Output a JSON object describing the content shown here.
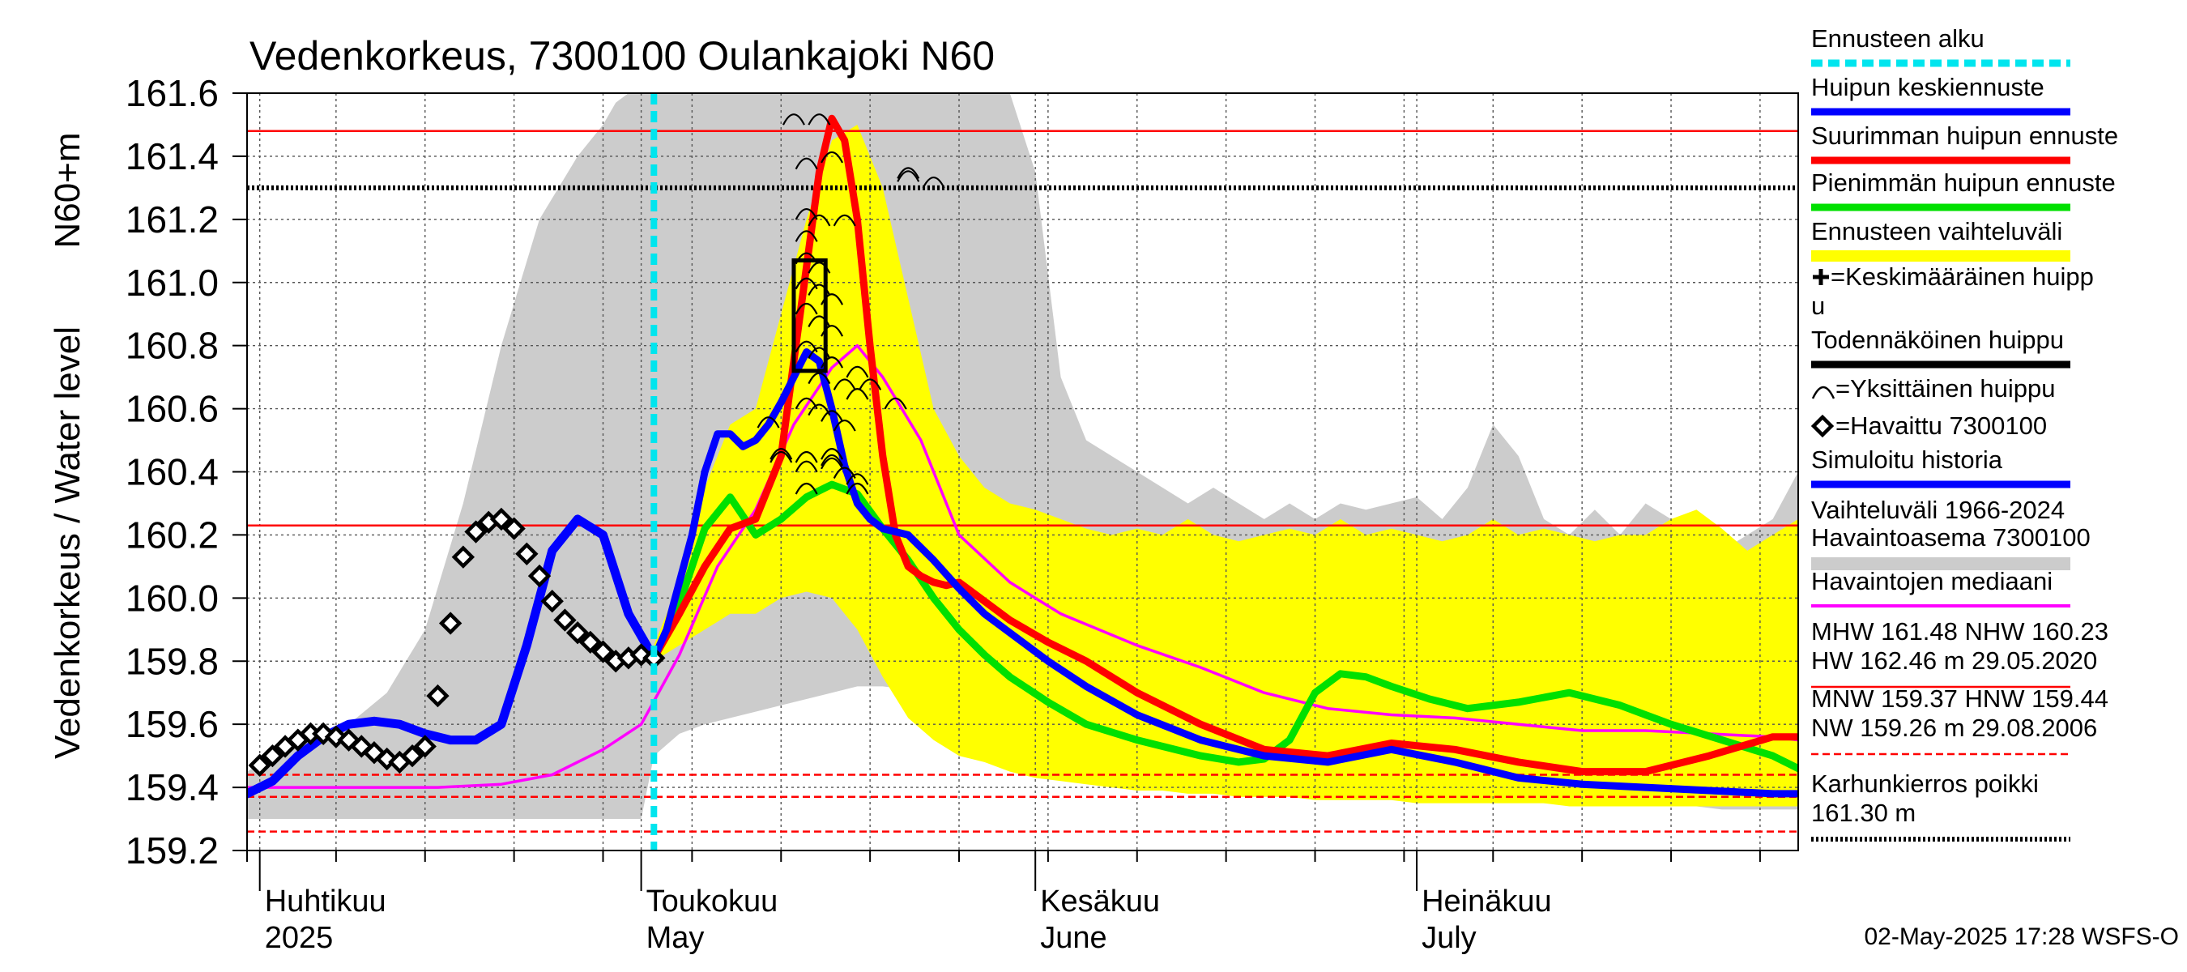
{
  "chart_data": {
    "type": "line",
    "title": "Vedenkorkeus, 7300100 Oulankajoki N60",
    "ylabel": "Vedenkorkeus / Water level",
    "yunit": "N60+m",
    "ylim": [
      159.2,
      161.6
    ],
    "yticks": [
      159.2,
      159.4,
      159.6,
      159.8,
      160.0,
      160.2,
      160.4,
      160.6,
      160.8,
      161.0,
      161.2,
      161.4,
      161.6
    ],
    "xlim": [
      "2025-03-31",
      "2025-07-31"
    ],
    "forecast_start": "2025-05-02",
    "timestamp": "02-May-2025 17:28 WSFS-O",
    "grid": true,
    "legend_position": "right",
    "month_labels": [
      {
        "date": "2025-04-01",
        "fi": "Huhtikuu",
        "en": "2025"
      },
      {
        "date": "2025-05-01",
        "fi": "Toukokuu",
        "en": "May"
      },
      {
        "date": "2025-06-01",
        "fi": "Kesäkuu",
        "en": "June"
      },
      {
        "date": "2025-07-01",
        "fi": "Heinäkuu",
        "en": "July"
      }
    ],
    "hlines": [
      {
        "value": 161.48,
        "color": "#ff0000",
        "style": "solid"
      },
      {
        "value": 160.23,
        "color": "#ff0000",
        "style": "solid"
      },
      {
        "value": 161.3,
        "color": "#000000",
        "style": "dotted"
      },
      {
        "value": 159.44,
        "color": "#ff0000",
        "style": "dashed"
      },
      {
        "value": 159.37,
        "color": "#ff0000",
        "style": "dashed"
      },
      {
        "value": 159.26,
        "color": "#ff0000",
        "style": "dashed"
      }
    ],
    "colors": {
      "forecast_start": "#00e5ee",
      "mean_peak": "#0000ff",
      "max_peak": "#ff0000",
      "min_peak": "#00e000",
      "forecast_range": "#ffff00",
      "simulated": "#0000ff",
      "historic_range": "#cccccc",
      "median": "#ff00ff"
    },
    "legend": [
      {
        "key": "forecast_start",
        "label": "Ennusteen alku"
      },
      {
        "key": "mean_peak",
        "label": "Huipun keskiennuste"
      },
      {
        "key": "max_peak",
        "label": "Suurimman huipun ennuste"
      },
      {
        "key": "min_peak",
        "label": "Pienimmän huipun ennuste"
      },
      {
        "key": "forecast_range",
        "label": "Ennusteen vaihteluväli"
      },
      {
        "key": "avg_peak",
        "label": "=Keskimääräinen huipp",
        "label2": "u"
      },
      {
        "key": "probable_peak",
        "label": "Todennäköinen huippu"
      },
      {
        "key": "single_peak",
        "label": "=Yksittäinen huippu"
      },
      {
        "key": "observed",
        "label": "=Havaittu 7300100"
      },
      {
        "key": "simulated",
        "label": "Simuloitu historia"
      },
      {
        "key": "historic_range",
        "label": "Vaihteluväli 1966-2024",
        "label2": " Havaintoasema 7300100"
      },
      {
        "key": "median",
        "label": "Havaintojen mediaani"
      },
      {
        "key": "mhw",
        "label": "MHW 161.48 NHW 160.23",
        "label2": "HW 162.46 m 29.05.2020"
      },
      {
        "key": "mnw",
        "label": "MNW 159.37 HNW 159.44",
        "label2": "NW 159.26 m 29.08.2006"
      },
      {
        "key": "karhu",
        "label": "Karhunkierros poikki",
        "label2": "161.30 m"
      }
    ],
    "series": [
      {
        "name": "Havaittu 7300100",
        "key": "observed",
        "type": "markers",
        "x": [
          1,
          2,
          3,
          4,
          5,
          6,
          7,
          8,
          9,
          10,
          11,
          12,
          13,
          14,
          15,
          16,
          17,
          18,
          19,
          20,
          21,
          22,
          23,
          24,
          25,
          26,
          27,
          28,
          29,
          30,
          31,
          32
        ],
        "y": [
          159.47,
          159.5,
          159.53,
          159.55,
          159.57,
          159.57,
          159.56,
          159.55,
          159.53,
          159.51,
          159.49,
          159.48,
          159.5,
          159.53,
          159.69,
          159.92,
          160.13,
          160.21,
          160.24,
          160.25,
          160.22,
          160.14,
          160.07,
          159.99,
          159.93,
          159.89,
          159.86,
          159.83,
          159.8,
          159.81,
          159.82,
          159.81
        ]
      },
      {
        "name": "Simuloitu historia",
        "key": "simulated",
        "type": "line",
        "x": [
          0,
          2,
          4,
          6,
          8,
          10,
          12,
          14,
          16,
          18,
          20,
          22,
          24,
          26,
          28,
          30,
          32
        ],
        "y": [
          159.38,
          159.42,
          159.5,
          159.56,
          159.6,
          159.61,
          159.6,
          159.57,
          159.55,
          159.55,
          159.6,
          159.85,
          160.15,
          160.25,
          160.2,
          159.95,
          159.81
        ]
      },
      {
        "name": "Huipun keskiennuste",
        "key": "mean_peak",
        "type": "line",
        "x": [
          32,
          33,
          34,
          35,
          36,
          37,
          38,
          39,
          40,
          41,
          42,
          43,
          44,
          45,
          46,
          47,
          48,
          49,
          50,
          52,
          54,
          56,
          58,
          60,
          63,
          66,
          70,
          75,
          80,
          85,
          90,
          95,
          100,
          105,
          110,
          115,
          120,
          122
        ],
        "y": [
          159.81,
          159.9,
          160.05,
          160.2,
          160.4,
          160.52,
          160.52,
          160.48,
          160.5,
          160.55,
          160.62,
          160.7,
          160.78,
          160.75,
          160.6,
          160.42,
          160.3,
          160.25,
          160.22,
          160.2,
          160.12,
          160.03,
          159.95,
          159.89,
          159.8,
          159.72,
          159.63,
          159.55,
          159.5,
          159.48,
          159.52,
          159.48,
          159.43,
          159.41,
          159.4,
          159.39,
          159.38,
          159.38
        ]
      },
      {
        "name": "Suurimman huipun ennuste",
        "key": "max_peak",
        "type": "line",
        "x": [
          32,
          34,
          36,
          38,
          40,
          42,
          43,
          44,
          45,
          46,
          47,
          48,
          49,
          50,
          51,
          52,
          53,
          54,
          55,
          56,
          58,
          60,
          63,
          66,
          70,
          75,
          80,
          85,
          90,
          95,
          100,
          105,
          110,
          115,
          120,
          122
        ],
        "y": [
          159.81,
          159.95,
          160.1,
          160.22,
          160.25,
          160.45,
          160.75,
          161.05,
          161.35,
          161.52,
          161.45,
          161.2,
          160.8,
          160.45,
          160.2,
          160.1,
          160.07,
          160.05,
          160.04,
          160.05,
          159.99,
          159.93,
          159.86,
          159.8,
          159.7,
          159.6,
          159.52,
          159.5,
          159.54,
          159.52,
          159.48,
          159.45,
          159.45,
          159.5,
          159.56,
          159.56
        ]
      },
      {
        "name": "Pienimmän huipun ennuste",
        "key": "min_peak",
        "type": "line",
        "x": [
          32,
          34,
          36,
          38,
          40,
          42,
          44,
          46,
          48,
          50,
          52,
          54,
          56,
          58,
          60,
          63,
          66,
          70,
          75,
          78,
          80,
          82,
          84,
          86,
          88,
          90,
          93,
          96,
          100,
          104,
          108,
          112,
          116,
          120,
          122
        ],
        "y": [
          159.81,
          159.98,
          160.22,
          160.32,
          160.2,
          160.25,
          160.32,
          160.36,
          160.33,
          160.22,
          160.12,
          160.0,
          159.9,
          159.82,
          159.75,
          159.67,
          159.6,
          159.55,
          159.5,
          159.48,
          159.49,
          159.55,
          159.7,
          159.76,
          159.75,
          159.72,
          159.68,
          159.65,
          159.67,
          159.7,
          159.66,
          159.6,
          159.55,
          159.5,
          159.46
        ]
      },
      {
        "name": "Havaintojen mediaani",
        "key": "median",
        "type": "line",
        "x": [
          0,
          5,
          10,
          15,
          20,
          24,
          28,
          31,
          34,
          37,
          40,
          43,
          46,
          48,
          50,
          53,
          56,
          60,
          64,
          70,
          75,
          80,
          85,
          90,
          95,
          100,
          105,
          110,
          115,
          120,
          122
        ],
        "y": [
          159.4,
          159.4,
          159.4,
          159.4,
          159.41,
          159.44,
          159.52,
          159.6,
          159.82,
          160.1,
          160.28,
          160.55,
          160.73,
          160.8,
          160.7,
          160.5,
          160.2,
          160.05,
          159.95,
          159.85,
          159.78,
          159.7,
          159.65,
          159.63,
          159.62,
          159.6,
          159.58,
          159.58,
          159.57,
          159.56,
          159.55
        ]
      }
    ],
    "bands": [
      {
        "name": "Vaihteluväli 1966-2024",
        "key": "historic_range",
        "x": [
          0,
          4,
          8,
          11,
          14,
          17,
          20,
          23,
          26,
          28,
          29,
          30,
          31,
          32,
          34,
          36,
          38,
          40,
          42,
          44,
          46,
          48,
          50,
          54,
          58,
          60,
          62,
          64,
          66,
          68,
          70,
          72,
          74,
          76,
          78,
          80,
          82,
          84,
          86,
          88,
          90,
          92,
          94,
          96,
          98,
          100,
          102,
          104,
          106,
          108,
          110,
          112,
          114,
          116,
          118,
          120,
          122
        ],
        "upper": [
          159.45,
          159.55,
          159.6,
          159.7,
          159.9,
          160.3,
          160.8,
          161.2,
          161.4,
          161.5,
          161.57,
          161.6,
          161.6,
          161.6,
          161.6,
          161.6,
          161.6,
          161.6,
          161.6,
          161.6,
          161.6,
          161.6,
          161.6,
          161.6,
          161.6,
          161.6,
          161.35,
          160.7,
          160.5,
          160.45,
          160.4,
          160.35,
          160.3,
          160.35,
          160.3,
          160.25,
          160.3,
          160.25,
          160.3,
          160.28,
          160.3,
          160.32,
          160.25,
          160.35,
          160.55,
          160.45,
          160.25,
          160.2,
          160.28,
          160.2,
          160.3,
          160.25,
          160.2,
          160.15,
          160.2,
          160.25,
          160.4
        ],
        "lower": [
          159.3,
          159.3,
          159.3,
          159.3,
          159.3,
          159.3,
          159.3,
          159.3,
          159.3,
          159.3,
          159.3,
          159.3,
          159.3,
          159.5,
          159.57,
          159.6,
          159.62,
          159.64,
          159.66,
          159.68,
          159.7,
          159.72,
          159.72,
          159.7,
          159.67,
          159.62,
          159.57,
          159.52,
          159.49,
          159.47,
          159.45,
          159.44,
          159.43,
          159.42,
          159.41,
          159.41,
          159.4,
          159.39,
          159.39,
          159.38,
          159.38,
          159.37,
          159.37,
          159.36,
          159.36,
          159.36,
          159.35,
          159.35,
          159.35,
          159.34,
          159.34,
          159.34,
          159.34,
          159.33,
          159.33,
          159.33,
          159.33
        ]
      },
      {
        "name": "Ennusteen vaihteluväli",
        "key": "forecast_range",
        "x": [
          32,
          34,
          36,
          38,
          40,
          42,
          44,
          46,
          48,
          50,
          52,
          54,
          56,
          58,
          60,
          62,
          64,
          66,
          68,
          70,
          72,
          74,
          76,
          78,
          80,
          82,
          84,
          86,
          88,
          90,
          92,
          94,
          96,
          98,
          100,
          102,
          104,
          106,
          108,
          110,
          112,
          114,
          116,
          118,
          120,
          122
        ],
        "upper": [
          159.85,
          160.05,
          160.35,
          160.55,
          160.6,
          160.9,
          161.2,
          161.45,
          161.5,
          161.3,
          160.95,
          160.6,
          160.45,
          160.35,
          160.3,
          160.28,
          160.25,
          160.22,
          160.2,
          160.22,
          160.2,
          160.25,
          160.2,
          160.18,
          160.2,
          160.22,
          160.2,
          160.25,
          160.2,
          160.22,
          160.2,
          160.18,
          160.2,
          160.25,
          160.2,
          160.22,
          160.2,
          160.18,
          160.2,
          160.2,
          160.25,
          160.28,
          160.22,
          160.15,
          160.2,
          160.25
        ],
        "lower": [
          159.8,
          159.85,
          159.9,
          159.95,
          159.95,
          160.0,
          160.02,
          160.0,
          159.9,
          159.75,
          159.62,
          159.55,
          159.5,
          159.48,
          159.45,
          159.43,
          159.42,
          159.41,
          159.4,
          159.39,
          159.39,
          159.38,
          159.38,
          159.37,
          159.37,
          159.37,
          159.36,
          159.36,
          159.36,
          159.36,
          159.35,
          159.35,
          159.35,
          159.35,
          159.35,
          159.35,
          159.34,
          159.34,
          159.34,
          159.34,
          159.34,
          159.34,
          159.34,
          159.34,
          159.34,
          159.34
        ]
      }
    ],
    "probable_peak_box": {
      "x_from": 43.0,
      "x_to": 45.5,
      "y_from": 160.72,
      "y_to": 161.07
    },
    "single_peaks": {
      "x": [
        43,
        45,
        44,
        46,
        44,
        45,
        44,
        44,
        45,
        44,
        45,
        46,
        44,
        45,
        46,
        44,
        45,
        46,
        45,
        47,
        48,
        49,
        51,
        52,
        54,
        44,
        45,
        46,
        47,
        48,
        44,
        46,
        47,
        48,
        42,
        44,
        46,
        48,
        44,
        46,
        41,
        42,
        47,
        52
      ],
      "y": [
        161.52,
        161.52,
        161.38,
        161.4,
        161.22,
        161.2,
        161.15,
        161.08,
        161.05,
        161.0,
        160.98,
        160.95,
        160.92,
        160.88,
        160.85,
        160.8,
        160.78,
        160.75,
        160.7,
        160.68,
        160.72,
        160.68,
        160.62,
        161.34,
        161.32,
        160.62,
        160.6,
        160.58,
        160.55,
        160.65,
        160.42,
        160.44,
        160.4,
        160.38,
        160.45,
        160.45,
        160.46,
        160.35,
        160.35,
        160.43,
        160.56,
        160.46,
        161.2,
        161.35
      ]
    }
  }
}
